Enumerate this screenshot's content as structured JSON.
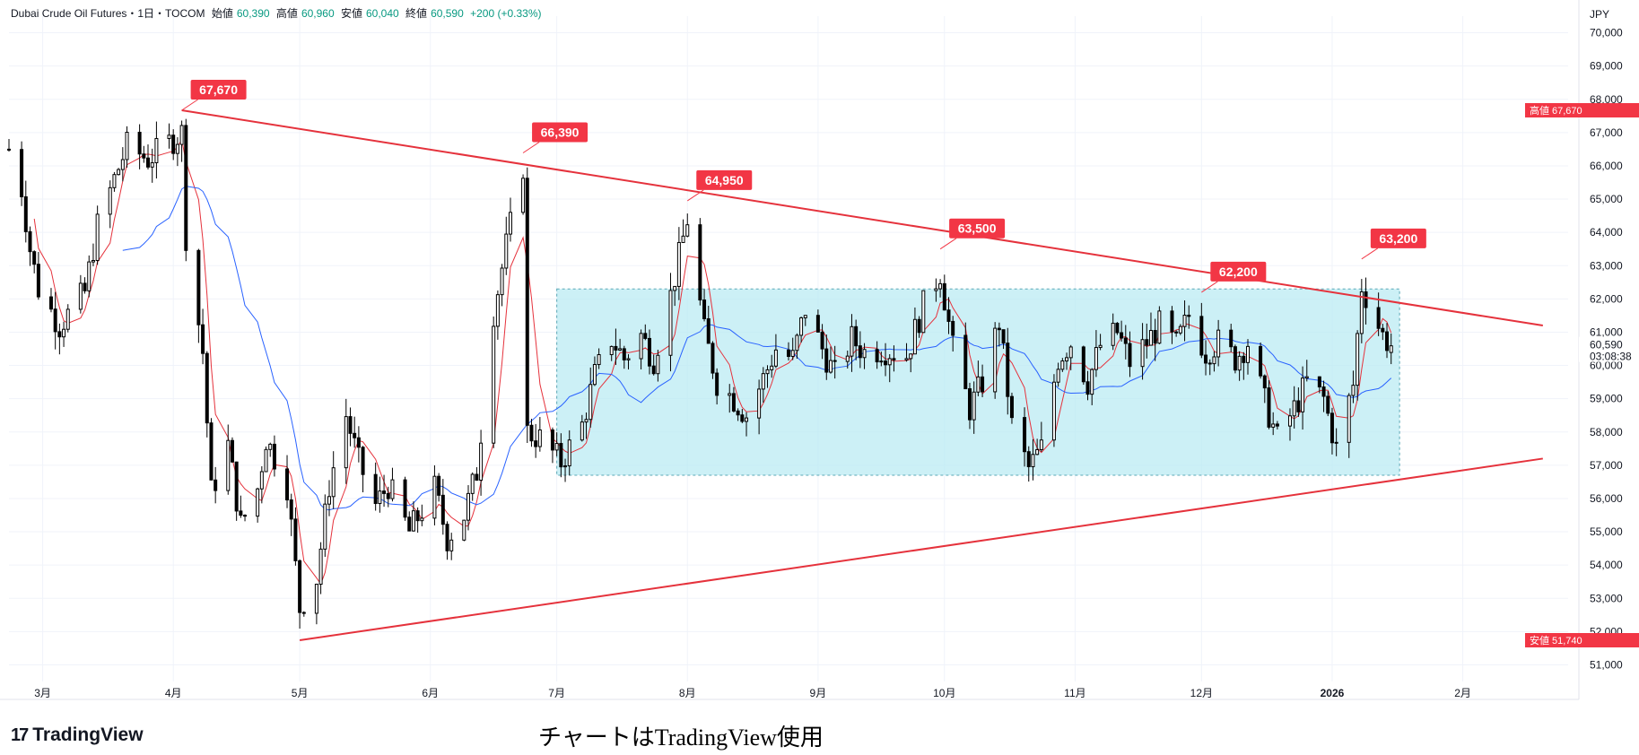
{
  "header": {
    "symbol": "Dubai Crude Oil Futures・1日・TOCOM",
    "open_label": "始値",
    "open": "60,390",
    "high_label": "高値",
    "high": "60,960",
    "low_label": "安値",
    "low": "60,040",
    "close_label": "終値",
    "close": "60,590",
    "change": "+200 (+0.33%)"
  },
  "footer": {
    "brand": "TradingView",
    "caption": "チャートはTradingView使用"
  },
  "colors": {
    "up": "#089981",
    "down": "#f23645",
    "trendline": "#e5323c",
    "ma_fast": "#e5323c",
    "ma_slow": "#2962ff",
    "box_fill": "#b7e9f2",
    "box_border": "#5aa7b5"
  },
  "chart_data": {
    "type": "candlestick",
    "currency": "JPY",
    "y_range": [
      50500,
      70500
    ],
    "y_ticks": [
      51000,
      52000,
      53000,
      54000,
      55000,
      56000,
      57000,
      58000,
      59000,
      60000,
      61000,
      62000,
      63000,
      64000,
      65000,
      66000,
      67000,
      68000,
      69000,
      70000
    ],
    "x_labels": [
      {
        "label": "3月",
        "date": "2025-03-01"
      },
      {
        "label": "4月",
        "date": "2025-04-01"
      },
      {
        "label": "5月",
        "date": "2025-05-01"
      },
      {
        "label": "6月",
        "date": "2025-06-01"
      },
      {
        "label": "7月",
        "date": "2025-07-01"
      },
      {
        "label": "8月",
        "date": "2025-08-01"
      },
      {
        "label": "9月",
        "date": "2025-09-01"
      },
      {
        "label": "10月",
        "date": "2025-10-01"
      },
      {
        "label": "11月",
        "date": "2025-11-01"
      },
      {
        "label": "12月",
        "date": "2025-12-01"
      },
      {
        "label": "2026",
        "date": "2026-01-01"
      },
      {
        "label": "2月",
        "date": "2026-02-01"
      }
    ],
    "last_price": {
      "value": 60590,
      "label": "60,590",
      "countdown": "03:08:38"
    },
    "high_marker": {
      "label": "高値",
      "value": 67670,
      "text": "67,670"
    },
    "low_marker": {
      "label": "安値",
      "value": 51740,
      "text": "51,740"
    },
    "peak_labels": [
      {
        "date": "2025-04-03",
        "value": 67670,
        "text": "67,670"
      },
      {
        "date": "2025-06-23",
        "value": 66390,
        "text": "66,390"
      },
      {
        "date": "2025-08-01",
        "value": 64950,
        "text": "64,950"
      },
      {
        "date": "2025-09-30",
        "value": 63500,
        "text": "63,500"
      },
      {
        "date": "2025-12-01",
        "value": 62200,
        "text": "62,200"
      },
      {
        "date": "2026-01-08",
        "value": 63200,
        "text": "63,200"
      }
    ],
    "trendlines": [
      {
        "from": {
          "date": "2025-04-03",
          "value": 67670
        },
        "to": {
          "date": "2026-02-20",
          "value": 61200
        }
      },
      {
        "from": {
          "date": "2025-05-01",
          "value": 51740
        },
        "to": {
          "date": "2026-02-20",
          "value": 57200
        }
      }
    ],
    "range_box": {
      "from_date": "2025-07-01",
      "to_date": "2026-01-17",
      "top": 62300,
      "bottom": 56700
    },
    "ohlc_anchors": [
      [
        "2025-02-21",
        66500
      ],
      [
        "2025-02-24",
        65300
      ],
      [
        "2025-02-26",
        63500
      ],
      [
        "2025-02-28",
        62300
      ],
      [
        "2025-03-05",
        61200
      ],
      [
        "2025-03-11",
        62200
      ],
      [
        "2025-03-14",
        64200
      ],
      [
        "2025-03-18",
        65600
      ],
      [
        "2025-03-21",
        66600
      ],
      [
        "2025-03-26",
        66200
      ],
      [
        "2025-04-03",
        67000
      ],
      [
        "2025-04-04",
        63900
      ],
      [
        "2025-04-08",
        60400
      ],
      [
        "2025-04-10",
        56200
      ],
      [
        "2025-04-14",
        57600
      ],
      [
        "2025-04-17",
        55200
      ],
      [
        "2025-04-21",
        56300
      ],
      [
        "2025-04-23",
        57800
      ],
      [
        "2025-04-28",
        56400
      ],
      [
        "2025-05-01",
        52700
      ],
      [
        "2025-05-05",
        53600
      ],
      [
        "2025-05-08",
        56400
      ],
      [
        "2025-05-12",
        58500
      ],
      [
        "2025-05-15",
        57100
      ],
      [
        "2025-05-19",
        55800
      ],
      [
        "2025-05-22",
        56400
      ],
      [
        "2025-05-27",
        55000
      ],
      [
        "2025-06-02",
        56300
      ],
      [
        "2025-06-05",
        54800
      ],
      [
        "2025-06-09",
        55500
      ],
      [
        "2025-06-12",
        56800
      ],
      [
        "2025-06-16",
        61600
      ],
      [
        "2025-06-19",
        63600
      ],
      [
        "2025-06-23",
        66000
      ],
      [
        "2025-06-24",
        58000
      ],
      [
        "2025-06-27",
        57800
      ],
      [
        "2025-07-02",
        57100
      ],
      [
        "2025-07-07",
        58200
      ],
      [
        "2025-07-10",
        59700
      ],
      [
        "2025-07-14",
        60800
      ],
      [
        "2025-07-17",
        60200
      ],
      [
        "2025-07-21",
        60900
      ],
      [
        "2025-07-24",
        60200
      ],
      [
        "2025-07-28",
        62100
      ],
      [
        "2025-08-01",
        64400
      ],
      [
        "2025-08-05",
        61000
      ],
      [
        "2025-08-08",
        59500
      ],
      [
        "2025-08-12",
        59000
      ],
      [
        "2025-08-15",
        58500
      ],
      [
        "2025-08-19",
        59600
      ],
      [
        "2025-08-22",
        60500
      ],
      [
        "2025-08-26",
        60200
      ],
      [
        "2025-08-29",
        61700
      ],
      [
        "2025-09-02",
        60500
      ],
      [
        "2025-09-05",
        59700
      ],
      [
        "2025-09-09",
        60800
      ],
      [
        "2025-09-12",
        60400
      ],
      [
        "2025-09-16",
        60500
      ],
      [
        "2025-09-22",
        60300
      ],
      [
        "2025-09-26",
        61800
      ],
      [
        "2025-09-30",
        62800
      ],
      [
        "2025-10-03",
        60500
      ],
      [
        "2025-10-07",
        58700
      ],
      [
        "2025-10-10",
        59500
      ],
      [
        "2025-10-14",
        61300
      ],
      [
        "2025-10-17",
        58200
      ],
      [
        "2025-10-21",
        56900
      ],
      [
        "2025-10-24",
        57500
      ],
      [
        "2025-10-28",
        60200
      ],
      [
        "2025-10-31",
        60700
      ],
      [
        "2025-11-04",
        59500
      ],
      [
        "2025-11-07",
        60600
      ],
      [
        "2025-11-11",
        61000
      ],
      [
        "2025-11-14",
        60100
      ],
      [
        "2025-11-18",
        60700
      ],
      [
        "2025-11-21",
        61200
      ],
      [
        "2025-11-25",
        60600
      ],
      [
        "2025-11-28",
        61500
      ],
      [
        "2025-12-02",
        60400
      ],
      [
        "2025-12-05",
        60700
      ],
      [
        "2025-12-09",
        60200
      ],
      [
        "2025-12-12",
        60700
      ],
      [
        "2025-12-16",
        58900
      ],
      [
        "2025-12-19",
        57800
      ],
      [
        "2025-12-23",
        58700
      ],
      [
        "2025-12-26",
        59500
      ],
      [
        "2025-12-30",
        59000
      ],
      [
        "2026-01-02",
        57500
      ],
      [
        "2026-01-06",
        59400
      ],
      [
        "2026-01-08",
        62400
      ],
      [
        "2026-01-13",
        60900
      ],
      [
        "2026-01-15",
        60590
      ]
    ]
  }
}
